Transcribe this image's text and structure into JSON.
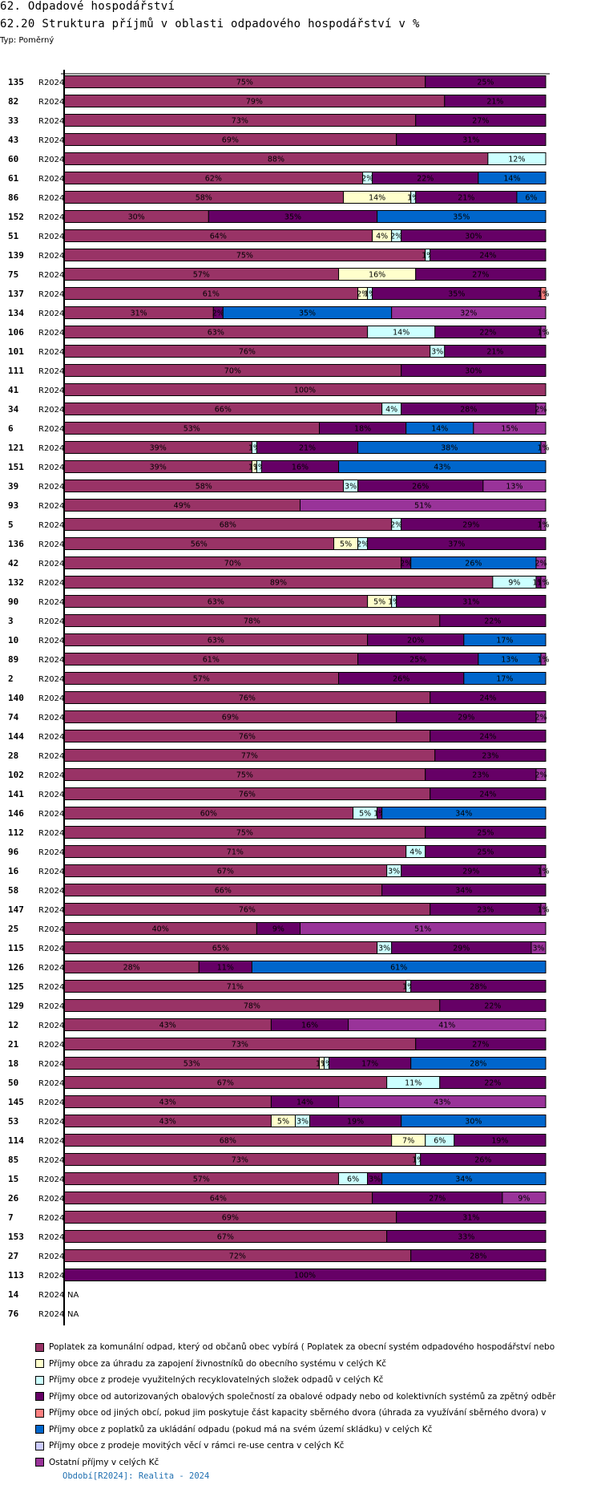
{
  "header": {
    "section_title": "62. Odpadové hospodářství",
    "chart_title": "62.20 Struktura příjmů v oblasti odpadového hospodářství v %",
    "type_label": "Typ: Poměrný"
  },
  "footer": {
    "period_note": "Období[R2024]: Realita - 2024"
  },
  "chart_data": {
    "type": "bar",
    "orientation": "horizontal",
    "stacked": true,
    "normalized_percent": true,
    "title": "62.20 Struktura příjmů v oblasti odpadového hospodářství v %",
    "xlim": [
      0,
      100
    ],
    "legend_position": "bottom",
    "series": [
      {
        "name": "Poplatek za komunální odpad, který od občanů obec vybírá ( Poplatek za obecní systém odpadového hospodářství  nebo",
        "color": "#993366"
      },
      {
        "name": "Příjmy obce za úhradu za zapojení živnostníků do obecního systému v celých Kč",
        "color": "#ffffcc"
      },
      {
        "name": "Příjmy obce z prodeje využitelných recyklovatelných složek odpadů v celých Kč",
        "color": "#ccffff"
      },
      {
        "name": "Příjmy obce od autorizovaných obalových společností za obalové odpady nebo od kolektivních systémů za zpětný odběr",
        "color": "#660066"
      },
      {
        "name": "Příjmy obce od jiných obcí, pokud jim poskytuje část kapacity sběrného dvora (úhrada za využívání sběrného dvora) v",
        "color": "#ff8080"
      },
      {
        "name": "Příjmy obce z poplatků za ukládání odpadu (pokud má na svém území skládku) v celých Kč",
        "color": "#0066cc"
      },
      {
        "name": "Příjmy obce z prodeje movitých věcí v rámci re-use centra v celých Kč",
        "color": "#ccccff"
      },
      {
        "name": "Ostatní příjmy v celých Kč",
        "color": "#993399"
      }
    ],
    "rows": [
      {
        "id": "135",
        "period": "R2024",
        "values": [
          75,
          0,
          0,
          25,
          0,
          0,
          0,
          0
        ]
      },
      {
        "id": "82",
        "period": "R2024",
        "values": [
          79,
          0,
          0,
          21,
          0,
          0,
          0,
          0
        ]
      },
      {
        "id": "33",
        "period": "R2024",
        "values": [
          73,
          0,
          0,
          27,
          0,
          0,
          0,
          0
        ]
      },
      {
        "id": "43",
        "period": "R2024",
        "values": [
          69,
          0,
          0,
          31,
          0,
          0,
          0,
          0
        ]
      },
      {
        "id": "60",
        "period": "R2024",
        "values": [
          88,
          0,
          12,
          0,
          0,
          0,
          0,
          0
        ]
      },
      {
        "id": "61",
        "period": "R2024",
        "values": [
          62,
          0,
          2,
          22,
          0,
          14,
          0,
          0
        ]
      },
      {
        "id": "86",
        "period": "R2024",
        "values": [
          58,
          14,
          1,
          21,
          0,
          6,
          0,
          0
        ]
      },
      {
        "id": "152",
        "period": "R2024",
        "values": [
          30,
          0,
          0,
          35,
          0,
          35,
          0,
          0
        ]
      },
      {
        "id": "51",
        "period": "R2024",
        "values": [
          64,
          4,
          2,
          30,
          0,
          0,
          0,
          0
        ]
      },
      {
        "id": "139",
        "period": "R2024",
        "values": [
          75,
          0,
          1,
          24,
          0,
          0,
          0,
          0
        ]
      },
      {
        "id": "75",
        "period": "R2024",
        "values": [
          57,
          16,
          0,
          27,
          0,
          0,
          0,
          0
        ]
      },
      {
        "id": "137",
        "period": "R2024",
        "values": [
          61,
          2,
          1,
          35,
          1,
          0,
          0,
          0
        ]
      },
      {
        "id": "134",
        "period": "R2024",
        "values": [
          31,
          0,
          0,
          2,
          0,
          35,
          0,
          32
        ]
      },
      {
        "id": "106",
        "period": "R2024",
        "values": [
          63,
          0,
          14,
          22,
          0,
          0,
          0,
          1
        ]
      },
      {
        "id": "101",
        "period": "R2024",
        "values": [
          76,
          0,
          3,
          21,
          0,
          0,
          0,
          0
        ]
      },
      {
        "id": "111",
        "period": "R2024",
        "values": [
          70,
          0,
          0,
          30,
          0,
          0,
          0,
          0
        ]
      },
      {
        "id": "41",
        "period": "R2024",
        "values": [
          100,
          0,
          0,
          0,
          0,
          0,
          0,
          0
        ]
      },
      {
        "id": "34",
        "period": "R2024",
        "values": [
          66,
          0,
          4,
          28,
          0,
          0,
          0,
          2
        ]
      },
      {
        "id": "6",
        "period": "R2024",
        "values": [
          53,
          0,
          0,
          18,
          0,
          14,
          0,
          15
        ]
      },
      {
        "id": "121",
        "period": "R2024",
        "values": [
          39,
          0,
          1,
          21,
          0,
          38,
          0,
          1
        ]
      },
      {
        "id": "151",
        "period": "R2024",
        "values": [
          39,
          1,
          1,
          16,
          0,
          43,
          0,
          0
        ]
      },
      {
        "id": "39",
        "period": "R2024",
        "values": [
          58,
          0,
          3,
          26,
          0,
          0,
          0,
          13
        ]
      },
      {
        "id": "93",
        "period": "R2024",
        "values": [
          49,
          0,
          0,
          0,
          0,
          0,
          0,
          51
        ]
      },
      {
        "id": "5",
        "period": "R2024",
        "values": [
          68,
          0,
          2,
          29,
          0,
          0,
          0,
          1
        ]
      },
      {
        "id": "136",
        "period": "R2024",
        "values": [
          56,
          5,
          2,
          37,
          0,
          0,
          0,
          0
        ]
      },
      {
        "id": "42",
        "period": "R2024",
        "values": [
          70,
          0,
          0,
          2,
          0,
          26,
          0,
          2
        ]
      },
      {
        "id": "132",
        "period": "R2024",
        "values": [
          89,
          0,
          9,
          1,
          0,
          0,
          0,
          1
        ]
      },
      {
        "id": "90",
        "period": "R2024",
        "values": [
          63,
          5,
          1,
          31,
          0,
          0,
          0,
          0
        ]
      },
      {
        "id": "3",
        "period": "R2024",
        "values": [
          78,
          0,
          0,
          22,
          0,
          0,
          0,
          0
        ]
      },
      {
        "id": "10",
        "period": "R2024",
        "values": [
          63,
          0,
          0,
          20,
          0,
          17,
          0,
          0
        ]
      },
      {
        "id": "89",
        "period": "R2024",
        "values": [
          61,
          0,
          0,
          25,
          0,
          13,
          0,
          1
        ]
      },
      {
        "id": "2",
        "period": "R2024",
        "values": [
          57,
          0,
          0,
          26,
          0,
          17,
          0,
          0
        ]
      },
      {
        "id": "140",
        "period": "R2024",
        "values": [
          76,
          0,
          0,
          24,
          0,
          0,
          0,
          0
        ]
      },
      {
        "id": "74",
        "period": "R2024",
        "values": [
          69,
          0,
          0,
          29,
          0,
          0,
          0,
          2
        ]
      },
      {
        "id": "144",
        "period": "R2024",
        "values": [
          76,
          0,
          0,
          24,
          0,
          0,
          0,
          0
        ]
      },
      {
        "id": "28",
        "period": "R2024",
        "values": [
          77,
          0,
          0,
          23,
          0,
          0,
          0,
          0
        ]
      },
      {
        "id": "102",
        "period": "R2024",
        "values": [
          75,
          0,
          0,
          23,
          0,
          0,
          0,
          2
        ]
      },
      {
        "id": "141",
        "period": "R2024",
        "values": [
          76,
          0,
          0,
          24,
          0,
          0,
          0,
          0
        ]
      },
      {
        "id": "146",
        "period": "R2024",
        "values": [
          60,
          0,
          5,
          1,
          0,
          34,
          0,
          0
        ]
      },
      {
        "id": "112",
        "period": "R2024",
        "values": [
          75,
          0,
          0,
          25,
          0,
          0,
          0,
          0
        ]
      },
      {
        "id": "96",
        "period": "R2024",
        "values": [
          71,
          0,
          4,
          25,
          0,
          0,
          0,
          0
        ]
      },
      {
        "id": "16",
        "period": "R2024",
        "values": [
          67,
          0,
          3,
          29,
          0,
          0,
          0,
          1
        ]
      },
      {
        "id": "58",
        "period": "R2024",
        "values": [
          66,
          0,
          0,
          34,
          0,
          0,
          0,
          0
        ]
      },
      {
        "id": "147",
        "period": "R2024",
        "values": [
          76,
          0,
          0,
          23,
          0,
          0,
          0,
          1
        ]
      },
      {
        "id": "25",
        "period": "R2024",
        "values": [
          40,
          0,
          0,
          9,
          0,
          0,
          0,
          51
        ]
      },
      {
        "id": "115",
        "period": "R2024",
        "values": [
          65,
          0,
          3,
          29,
          0,
          0,
          0,
          3
        ]
      },
      {
        "id": "126",
        "period": "R2024",
        "values": [
          28,
          0,
          0,
          11,
          0,
          61,
          0,
          0
        ]
      },
      {
        "id": "125",
        "period": "R2024",
        "values": [
          71,
          0,
          1,
          28,
          0,
          0,
          0,
          0
        ]
      },
      {
        "id": "129",
        "period": "R2024",
        "values": [
          78,
          0,
          0,
          22,
          0,
          0,
          0,
          0
        ]
      },
      {
        "id": "12",
        "period": "R2024",
        "values": [
          43,
          0,
          0,
          16,
          0,
          0,
          0,
          41
        ]
      },
      {
        "id": "21",
        "period": "R2024",
        "values": [
          73,
          0,
          0,
          27,
          0,
          0,
          0,
          0
        ]
      },
      {
        "id": "18",
        "period": "R2024",
        "values": [
          53,
          1,
          1,
          17,
          0,
          28,
          0,
          0
        ]
      },
      {
        "id": "50",
        "period": "R2024",
        "values": [
          67,
          0,
          11,
          22,
          0,
          0,
          0,
          0
        ]
      },
      {
        "id": "145",
        "period": "R2024",
        "values": [
          43,
          0,
          0,
          14,
          0,
          0,
          0,
          43
        ]
      },
      {
        "id": "53",
        "period": "R2024",
        "values": [
          43,
          5,
          3,
          19,
          0,
          30,
          0,
          0
        ]
      },
      {
        "id": "114",
        "period": "R2024",
        "values": [
          68,
          7,
          6,
          19,
          0,
          0,
          0,
          0
        ]
      },
      {
        "id": "85",
        "period": "R2024",
        "values": [
          73,
          0,
          1,
          26,
          0,
          0,
          0,
          0
        ]
      },
      {
        "id": "15",
        "period": "R2024",
        "values": [
          57,
          0,
          6,
          3,
          0,
          34,
          0,
          0
        ]
      },
      {
        "id": "26",
        "period": "R2024",
        "values": [
          64,
          0,
          0,
          27,
          0,
          0,
          0,
          9
        ]
      },
      {
        "id": "7",
        "period": "R2024",
        "values": [
          69,
          0,
          0,
          31,
          0,
          0,
          0,
          0
        ]
      },
      {
        "id": "153",
        "period": "R2024",
        "values": [
          67,
          0,
          0,
          33,
          0,
          0,
          0,
          0
        ]
      },
      {
        "id": "27",
        "period": "R2024",
        "values": [
          72,
          0,
          0,
          28,
          0,
          0,
          0,
          0
        ]
      },
      {
        "id": "113",
        "period": "R2024",
        "values": [
          0,
          0,
          0,
          100,
          0,
          0,
          0,
          0
        ]
      },
      {
        "id": "14",
        "period": "R2024",
        "values": null,
        "na_label": "NA"
      },
      {
        "id": "76",
        "period": "R2024",
        "values": null,
        "na_label": "NA"
      }
    ]
  }
}
